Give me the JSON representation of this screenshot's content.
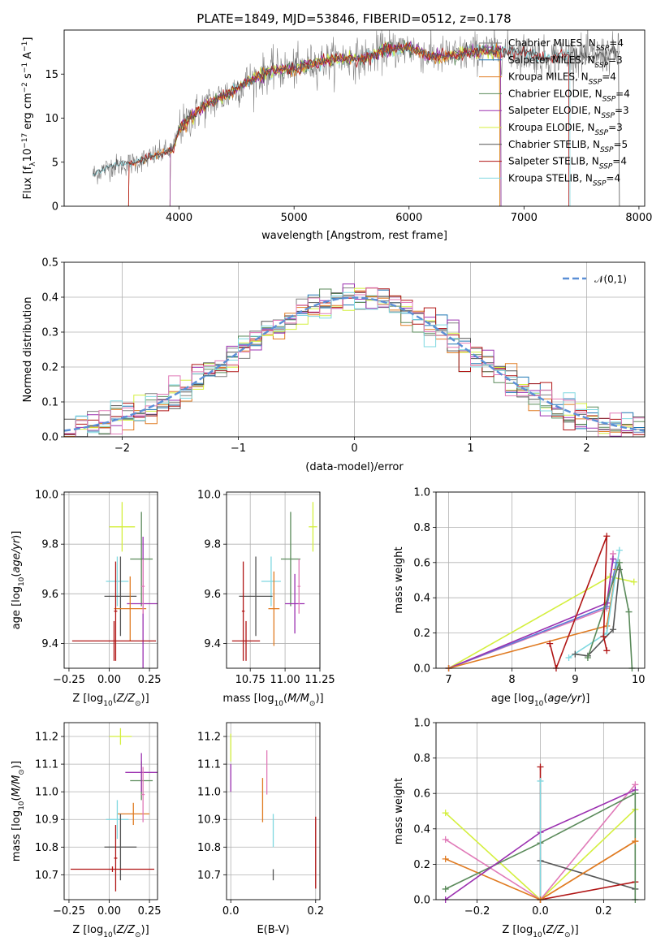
{
  "figure": {
    "title": "PLATE=1849, MJD=53846, FIBERID=0512, z=0.178"
  },
  "colors": {
    "Chabrier MILES": "#808080",
    "Salpeter MILES": "#1f77b4",
    "Kroupa MILES": "#e07b22",
    "Chabrier ELODIE": "#5a8a5a",
    "Salpeter ELODIE": "#9b30b0",
    "Kroupa ELODIE": "#d4ef3e",
    "Chabrier STELIB": "#555555",
    "Salpeter STELIB": "#b01515",
    "Kroupa STELIB": "#7fd8e0",
    "gaussian": "#5b8fd6",
    "extra_pink": "#e07ab8",
    "extra_blue": "#5b7fd6"
  },
  "chart_data": [
    {
      "id": "spectrum",
      "type": "line",
      "xlabel": "wavelength [Angstrom, rest frame]",
      "ylabel": "Flux [f_λ10^{-17} erg cm^{-2} s^{-1} A^{-1}]",
      "xlim": [
        3000,
        8050
      ],
      "ylim": [
        0,
        20
      ],
      "xticks": [
        4000,
        5000,
        6000,
        7000,
        8000
      ],
      "yticks": [
        0,
        5,
        10,
        15
      ],
      "grid": false,
      "legend_position": "right",
      "legend": [
        {
          "name": "Chabrier MILES",
          "nssp": "4"
        },
        {
          "name": "Salpeter MILES",
          "nssp": "3"
        },
        {
          "name": "Kroupa MILES",
          "nssp": "4"
        },
        {
          "name": "Chabrier ELODIE",
          "nssp": "4"
        },
        {
          "name": "Salpeter ELODIE",
          "nssp": "3"
        },
        {
          "name": "Kroupa ELODIE",
          "nssp": "3"
        },
        {
          "name": "Chabrier STELIB",
          "nssp": "5"
        },
        {
          "name": "Salpeter STELIB",
          "nssp": "4"
        },
        {
          "name": "Kroupa STELIB",
          "nssp": "4"
        }
      ],
      "data_range": [
        3250,
        7830
      ],
      "continuum": {
        "x": [
          3250,
          3400,
          3600,
          3800,
          3950,
          4000,
          4200,
          4400,
          4600,
          4800,
          5000,
          5200,
          5400,
          5600,
          5800,
          6000,
          6200,
          6400,
          6600,
          6800,
          7000,
          7200,
          7400,
          7600,
          7830
        ],
        "y": [
          3.6,
          4.5,
          4.9,
          5.8,
          6.5,
          8.8,
          11.2,
          12.6,
          14.2,
          15.4,
          15.6,
          16.3,
          16.8,
          16.7,
          17.8,
          18.0,
          17.0,
          17.1,
          17.6,
          17.6,
          17.4,
          16.8,
          17.2,
          17.0,
          17.4
        ]
      }
    },
    {
      "id": "residuals",
      "type": "bar",
      "xlabel": "(data-model)/error",
      "ylabel": "Normed distribution",
      "xlim": [
        -2.5,
        2.5
      ],
      "ylim": [
        0,
        0.5
      ],
      "xticks": [
        -2,
        -1,
        0,
        1,
        2
      ],
      "yticks": [
        0.0,
        0.1,
        0.2,
        0.3,
        0.4,
        0.5
      ],
      "grid": true,
      "legend_position": "top-right",
      "legend": [
        {
          "name": "𝒩(0,1)"
        }
      ],
      "bin_width": 0.1,
      "bin_start": -2.5
    },
    {
      "id": "z-age",
      "type": "scatter",
      "xlabel": "Z [log10(Z/Z⊙)]",
      "ylabel": "age  [log10(age/yr)]",
      "xlim": [
        -0.28,
        0.3
      ],
      "ylim": [
        9.3,
        10.01
      ],
      "xticks": [
        -0.25,
        0.0,
        0.25
      ],
      "yticks": [
        9.4,
        9.6,
        9.8,
        10.0
      ],
      "grid": true,
      "errorbars": [
        {
          "series": "Kroupa ELODIE",
          "x": 0.08,
          "xerr": 0.08,
          "y": 9.87,
          "yerr": 0.1
        },
        {
          "series": "Chabrier ELODIE",
          "x": 0.2,
          "xerr": 0.07,
          "y": 9.74,
          "yerr": 0.19
        },
        {
          "series": "Salpeter ELODIE",
          "x": 0.21,
          "xerr": 0.1,
          "y": 9.56,
          "yerr": 0.27
        },
        {
          "series": "Kroupa STELIB",
          "x": 0.05,
          "xerr": 0.07,
          "y": 9.65,
          "yerr": 0.1
        },
        {
          "series": "Chabrier STELIB",
          "x": 0.07,
          "xerr": 0.1,
          "y": 9.59,
          "yerr": 0.16
        },
        {
          "series": "Kroupa MILES",
          "x": 0.13,
          "xerr": 0.1,
          "y": 9.54,
          "yerr": 0.13
        },
        {
          "series": "Salpeter STELIB",
          "x": 0.03,
          "xerr": 0.26,
          "y": 9.41,
          "yerr": 0.08
        },
        {
          "series": "Salpeter STELIB",
          "x": 0.04,
          "xerr": 0.01,
          "y": 9.53,
          "yerr": 0.2
        },
        {
          "series": "extra_pink",
          "x": 0.21,
          "xerr": 0.01,
          "y": 9.63,
          "yerr": 0.11
        }
      ]
    },
    {
      "id": "mass-age",
      "type": "scatter",
      "xlabel": "mass [log10(M/M⊙)]",
      "ylabel": "",
      "xlim": [
        10.58,
        11.25
      ],
      "ylim": [
        9.3,
        10.01
      ],
      "xticks": [
        10.75,
        11.0,
        11.25
      ],
      "yticks": [
        9.4,
        9.6,
        9.8,
        10.0
      ],
      "grid": true,
      "errorbars": [
        {
          "series": "Kroupa ELODIE",
          "x": 11.2,
          "xerr": 0.03,
          "y": 9.87,
          "yerr": 0.1
        },
        {
          "series": "Chabrier ELODIE",
          "x": 11.04,
          "xerr": 0.07,
          "y": 9.74,
          "yerr": 0.19
        },
        {
          "series": "Salpeter ELODIE",
          "x": 11.07,
          "xerr": 0.07,
          "y": 9.56,
          "yerr": 0.12
        },
        {
          "series": "Kroupa STELIB",
          "x": 10.9,
          "xerr": 0.07,
          "y": 9.65,
          "yerr": 0.1
        },
        {
          "series": "Chabrier STELIB",
          "x": 10.79,
          "xerr": 0.12,
          "y": 9.59,
          "yerr": 0.16
        },
        {
          "series": "Kroupa MILES",
          "x": 10.92,
          "xerr": 0.04,
          "y": 9.54,
          "yerr": 0.15
        },
        {
          "series": "Salpeter STELIB",
          "x": 10.72,
          "xerr": 0.1,
          "y": 9.41,
          "yerr": 0.08
        },
        {
          "series": "Salpeter STELIB",
          "x": 10.7,
          "xerr": 0.01,
          "y": 9.53,
          "yerr": 0.2
        },
        {
          "series": "extra_pink",
          "x": 11.1,
          "xerr": 0.01,
          "y": 9.63,
          "yerr": 0.11
        }
      ]
    },
    {
      "id": "age-weight",
      "type": "line",
      "xlabel": "age  [log10(age/yr)]",
      "ylabel": "mass weight",
      "xlim": [
        6.8,
        10.1
      ],
      "ylim": [
        0,
        1.0
      ],
      "xticks": [
        7,
        8,
        9,
        10
      ],
      "yticks": [
        0.0,
        0.2,
        0.4,
        0.6,
        0.8,
        1.0
      ],
      "grid": true,
      "series": [
        {
          "name": "Kroupa ELODIE",
          "x": [
            7.0,
            9.55,
            9.93
          ],
          "y": [
            0.0,
            0.52,
            0.49
          ]
        },
        {
          "name": "extra_pink",
          "x": [
            7.0,
            9.5,
            9.6
          ],
          "y": [
            0.0,
            0.34,
            0.65
          ]
        },
        {
          "name": "extra_blue",
          "x": [
            7.0,
            9.5,
            9.65
          ],
          "y": [
            0.0,
            0.35,
            0.6
          ]
        },
        {
          "name": "Salpeter ELODIE",
          "x": [
            7.0,
            9.5,
            9.6
          ],
          "y": [
            0.0,
            0.37,
            0.62
          ]
        },
        {
          "name": "Kroupa MILES",
          "x": [
            7.0,
            9.5,
            9.65
          ],
          "y": [
            0.0,
            0.24,
            0.56
          ]
        },
        {
          "name": "Kroupa STELIB",
          "x": [
            8.9,
            9.5,
            9.7
          ],
          "y": [
            0.06,
            0.2,
            0.67
          ]
        },
        {
          "name": "Chabrier STELIB",
          "x": [
            9.0,
            9.2,
            9.6,
            9.7
          ],
          "y": [
            0.08,
            0.07,
            0.22,
            0.56
          ]
        },
        {
          "name": "Salpeter STELIB",
          "x": [
            8.6,
            8.7,
            9.5,
            9.45,
            9.5
          ],
          "y": [
            0.14,
            0.0,
            0.75,
            0.18,
            0.1
          ]
        },
        {
          "name": "Chabrier ELODIE",
          "x": [
            9.2,
            9.7,
            9.85,
            9.9
          ],
          "y": [
            0.06,
            0.6,
            0.32,
            0.0
          ]
        }
      ]
    },
    {
      "id": "z-mass",
      "type": "scatter",
      "xlabel": "Z [log10(Z/Z⊙)]",
      "ylabel": "mass [log10(M/M⊙)]",
      "xlim": [
        -0.28,
        0.3
      ],
      "ylim": [
        10.61,
        11.25
      ],
      "xticks": [
        -0.25,
        0.0,
        0.25
      ],
      "yticks": [
        10.7,
        10.8,
        10.9,
        11.0,
        11.1,
        11.2
      ],
      "grid": true,
      "errorbars": [
        {
          "series": "Kroupa ELODIE",
          "x": 0.07,
          "xerr": 0.07,
          "y": 11.2,
          "yerr": 0.03
        },
        {
          "series": "Chabrier ELODIE",
          "x": 0.2,
          "xerr": 0.07,
          "y": 11.04,
          "yerr": 0.07
        },
        {
          "series": "Salpeter ELODIE",
          "x": 0.2,
          "xerr": 0.1,
          "y": 11.07,
          "yerr": 0.07
        },
        {
          "series": "Kroupa MILES",
          "x": 0.15,
          "xerr": 0.1,
          "y": 10.92,
          "yerr": 0.04
        },
        {
          "series": "Kroupa STELIB",
          "x": 0.05,
          "xerr": 0.07,
          "y": 10.9,
          "yerr": 0.07
        },
        {
          "series": "Chabrier STELIB",
          "x": 0.07,
          "xerr": 0.1,
          "y": 10.8,
          "yerr": 0.12
        },
        {
          "series": "Salpeter STELIB",
          "x": 0.02,
          "xerr": 0.26,
          "y": 10.72,
          "yerr": 0.01
        },
        {
          "series": "Salpeter STELIB",
          "x": 0.04,
          "xerr": 0.01,
          "y": 10.76,
          "yerr": 0.12
        },
        {
          "series": "extra_pink",
          "x": 0.21,
          "xerr": 0.01,
          "y": 10.99,
          "yerr": 0.1
        }
      ]
    },
    {
      "id": "ebv-mass",
      "type": "scatter",
      "xlabel": "E(B-V)",
      "ylabel": "",
      "xlim": [
        -0.01,
        0.21
      ],
      "ylim": [
        10.61,
        11.25
      ],
      "xticks": [
        0.0,
        0.2
      ],
      "yticks": [
        10.7,
        10.8,
        10.9,
        11.0,
        11.1,
        11.2
      ],
      "grid": true,
      "errorbars": [
        {
          "series": "Kroupa ELODIE",
          "x": 0.0,
          "xerr": 0,
          "y": 11.16,
          "yerr": 0.05
        },
        {
          "series": "Salpeter ELODIE",
          "x": 0.0,
          "xerr": 0,
          "y": 11.05,
          "yerr": 0.05
        },
        {
          "series": "extra_pink",
          "x": 0.085,
          "xerr": 0,
          "y": 11.07,
          "yerr": 0.08
        },
        {
          "series": "Kroupa MILES",
          "x": 0.075,
          "xerr": 0,
          "y": 10.97,
          "yerr": 0.08
        },
        {
          "series": "Kroupa STELIB",
          "x": 0.1,
          "xerr": 0,
          "y": 10.86,
          "yerr": 0.06
        },
        {
          "series": "Chabrier STELIB",
          "x": 0.1,
          "xerr": 0,
          "y": 10.7,
          "yerr": 0.02
        },
        {
          "series": "Salpeter STELIB",
          "x": 0.2,
          "xerr": 0,
          "y": 10.78,
          "yerr": 0.13
        }
      ]
    },
    {
      "id": "z-weight",
      "type": "line",
      "xlabel": "Z [log10(Z/Z⊙)]",
      "ylabel": "mass weight",
      "xlim": [
        -0.33,
        0.33
      ],
      "ylim": [
        0,
        1.0
      ],
      "xticks": [
        -0.2,
        0.0,
        0.2
      ],
      "yticks": [
        0.0,
        0.2,
        0.4,
        0.6,
        0.8,
        1.0
      ],
      "grid": true,
      "series": [
        {
          "name": "Kroupa ELODIE",
          "x": [
            -0.3,
            0.0,
            0.3
          ],
          "y": [
            0.49,
            0.0,
            0.51
          ]
        },
        {
          "name": "extra_pink",
          "x": [
            -0.3,
            0.0,
            0.3
          ],
          "y": [
            0.34,
            0.0,
            0.65
          ]
        },
        {
          "name": "Kroupa MILES",
          "x": [
            -0.3,
            0.0,
            0.3
          ],
          "y": [
            0.23,
            0.0,
            0.33
          ]
        },
        {
          "name": "Chabrier ELODIE",
          "x": [
            -0.3,
            0.0,
            0.3
          ],
          "y": [
            0.06,
            0.32,
            0.6
          ]
        },
        {
          "name": "Salpeter ELODIE",
          "x": [
            -0.3,
            0.0,
            0.3
          ],
          "y": [
            0.0,
            0.38,
            0.62
          ]
        },
        {
          "name": "Chabrier STELIB",
          "x": [
            0.0,
            0.3
          ],
          "y": [
            0.22,
            0.06
          ]
        },
        {
          "name": "Salpeter STELIB",
          "x": [
            0.0,
            0.3
          ],
          "y": [
            0.0,
            0.1
          ]
        },
        {
          "name": "Salpeter STELIB",
          "x": [
            0.0,
            0.0
          ],
          "y": [
            0.0,
            0.75
          ]
        },
        {
          "name": "Kroupa STELIB",
          "x": [
            0.0,
            0.0
          ],
          "y": [
            0.0,
            0.67
          ]
        },
        {
          "name": "Chabrier ELODIE",
          "x": [
            0.3,
            0.3
          ],
          "y": [
            0.0,
            0.6
          ]
        },
        {
          "name": "Kroupa MILES",
          "x": [
            0.0,
            0.3
          ],
          "y": [
            0.0,
            0.33
          ]
        }
      ]
    }
  ]
}
